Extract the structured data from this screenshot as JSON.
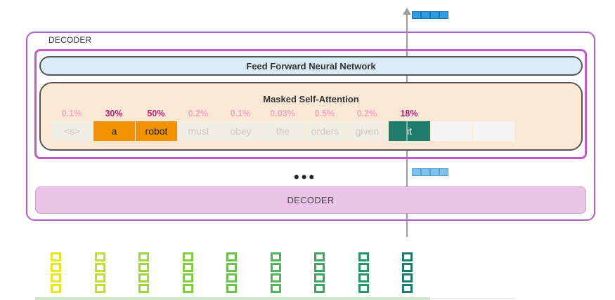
{
  "outer_decoder_label": "DECODER",
  "ffnn_label": "Feed Forward Neural Network",
  "attention_title": "Masked Self-Attention",
  "tokens": [
    {
      "text": "<s>",
      "percent": "0.1%",
      "state": "faded"
    },
    {
      "text": "a",
      "percent": "30%",
      "state": "highlight"
    },
    {
      "text": "robot",
      "percent": "50%",
      "state": "highlight"
    },
    {
      "text": "must",
      "percent": "0.2%",
      "state": "faded"
    },
    {
      "text": "obey",
      "percent": "0.1%",
      "state": "faded"
    },
    {
      "text": "the",
      "percent": "0.03%",
      "state": "faded"
    },
    {
      "text": "orders",
      "percent": "0.5%",
      "state": "faded"
    },
    {
      "text": "given",
      "percent": "0.2%",
      "state": "faded"
    },
    {
      "text": "it",
      "percent": "18%",
      "state": "current"
    }
  ],
  "ellipsis": "•••",
  "lower_decoder_label": "DECODER",
  "colors": {
    "decoder_border": "#b35fc3",
    "ffnn_fill": "#dcebf8",
    "attention_fill": "#fde8d6",
    "highlight_token": "#f39200",
    "current_token": "#1d7c6a",
    "highlight_percent": "#c3227a",
    "dim_percent": "#f2a7bf",
    "lower_decoder_fill": "#ecc3e9",
    "output_vector": "#2f9be3"
  },
  "embedding_colors": [
    "#e6e62a",
    "#c3de2c",
    "#a2d53a",
    "#85cc45",
    "#6ac24f",
    "#4fb65a",
    "#3aa762",
    "#2b9567",
    "#1d7c6a"
  ]
}
